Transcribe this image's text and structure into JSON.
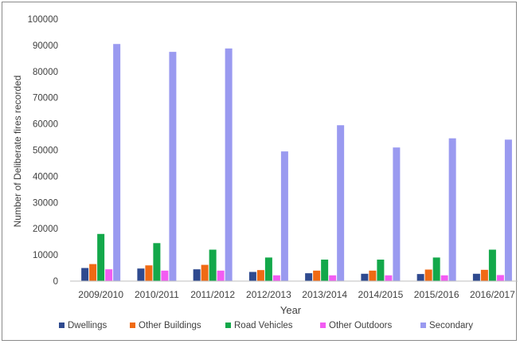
{
  "chart_data": {
    "type": "bar",
    "title": "",
    "xlabel": "Year",
    "ylabel": "Number of Deliberate fires recorded",
    "ylim": [
      0,
      100000
    ],
    "yticks": [
      0,
      10000,
      20000,
      30000,
      40000,
      50000,
      60000,
      70000,
      80000,
      90000,
      100000
    ],
    "grid": false,
    "legend_position": "bottom",
    "categories": [
      "2009/2010",
      "2010/2011",
      "2011/2012",
      "2012/2013",
      "2013/2014",
      "2014/2015",
      "2015/2016",
      "2016/2017"
    ],
    "series": [
      {
        "name": "Dwellings",
        "color": "#2f4a8f",
        "values": [
          5000,
          4800,
          4500,
          3500,
          3000,
          2800,
          2700,
          2800
        ]
      },
      {
        "name": "Other Buildings",
        "color": "#f06a14",
        "values": [
          6500,
          6000,
          6200,
          4200,
          4000,
          4000,
          4400,
          4300
        ]
      },
      {
        "name": "Road Vehicles",
        "color": "#13a84a",
        "values": [
          18000,
          14500,
          12000,
          9000,
          8200,
          8200,
          9000,
          12000
        ]
      },
      {
        "name": "Other Outdoors",
        "color": "#f25cf2",
        "values": [
          4500,
          4000,
          4000,
          2200,
          2200,
          2200,
          2200,
          2300
        ]
      },
      {
        "name": "Secondary",
        "color": "#9a9af0",
        "values": [
          90500,
          87500,
          88800,
          49500,
          59500,
          51000,
          54500,
          54000
        ]
      }
    ]
  }
}
